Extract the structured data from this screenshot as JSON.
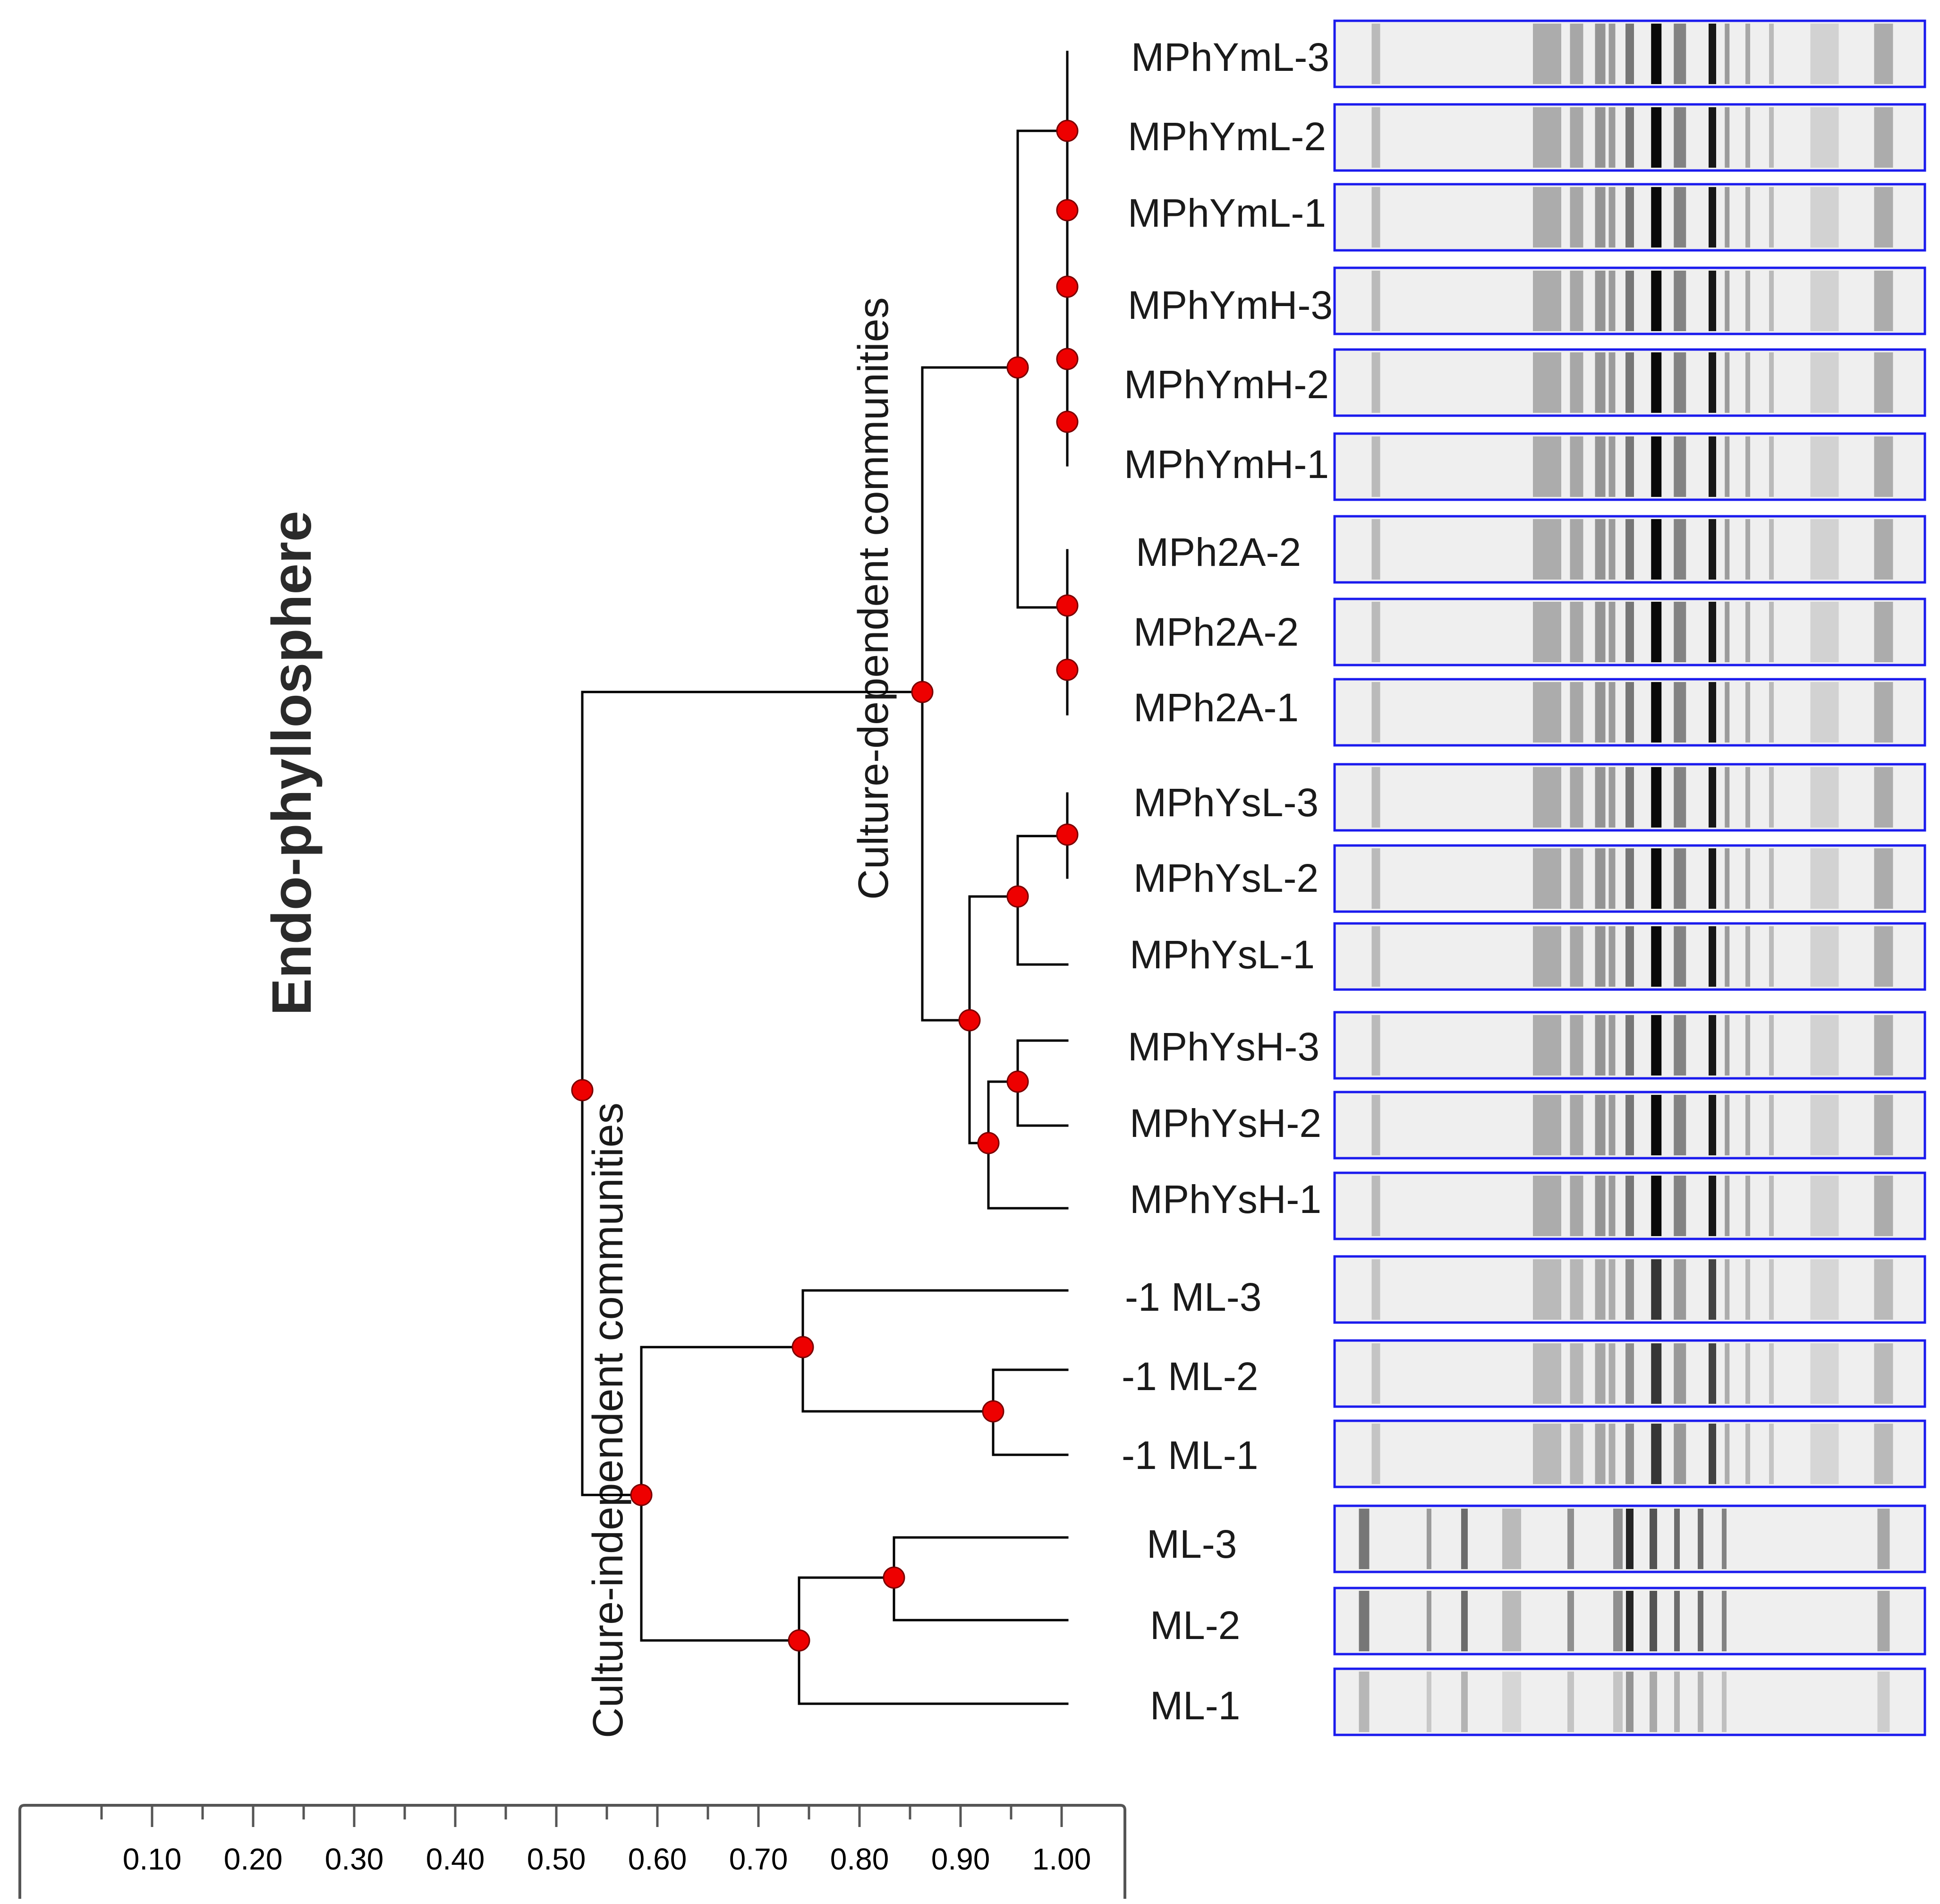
{
  "title": "Endo-phyllosphere",
  "group_labels": {
    "culture_dependent": "Culture-dependent communities",
    "culture_independent": "Culture-independent communities"
  },
  "scale_ticks": [
    "0.10",
    "0.20",
    "0.30",
    "0.40",
    "0.50",
    "0.60",
    "0.70",
    "0.80",
    "0.90",
    "1.00"
  ],
  "samples": [
    "MPhYmL-3",
    "MPhYmL-2",
    "MPhYmL-1",
    "MPhYmH-3",
    "MPhYmH-2",
    "MPhYmH-1",
    "MPh2A-2",
    "MPh2A-2",
    "MPh2A-1",
    "MPhYsL-3",
    "MPhYsL-2",
    "MPhYsL-1",
    "MPhYsH-3",
    "MPhYsH-2",
    "MPhYsH-1",
    "-1 ML-3",
    "-1 ML-2",
    "-1 ML-1",
    "ML-3",
    "ML-2",
    "ML-1"
  ],
  "colors": {
    "node": "#ee0000",
    "lane_frame": "#1a1aee",
    "tree": "#000000"
  },
  "tree_nodes": [
    {
      "id": "n_root",
      "similarity": 0.52
    },
    {
      "id": "n_cd",
      "similarity": 0.86
    },
    {
      "id": "n_ci",
      "similarity": 0.58
    },
    {
      "id": "n_ym",
      "similarity": 0.95
    },
    {
      "id": "n_ys",
      "similarity": 0.9
    },
    {
      "id": "n_ysl",
      "similarity": 0.95
    },
    {
      "id": "n_ysh",
      "similarity": 0.92
    },
    {
      "id": "n_ysh23",
      "similarity": 0.95
    },
    {
      "id": "n_ml1",
      "similarity": 0.74
    },
    {
      "id": "n_ml12",
      "similarity": 0.93
    },
    {
      "id": "n_ml2",
      "similarity": 0.74
    },
    {
      "id": "n_ml23",
      "similarity": 0.83
    }
  ]
}
